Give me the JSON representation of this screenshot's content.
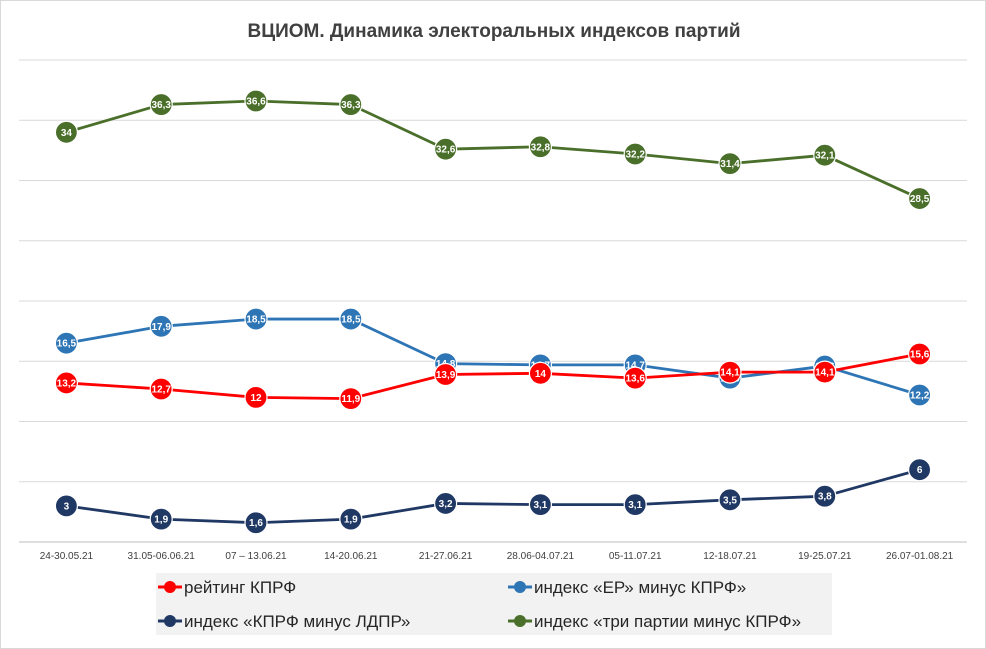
{
  "chart_data": {
    "type": "line",
    "title": "ВЦИОМ. Динамика электоральных индексов партий",
    "categories": [
      "24-30.05.21",
      "31.05-06.06.21",
      "07 – 13.06.21",
      "14-20.06.21",
      "21-27.06.21",
      "28.06-04.07.21",
      "05-11.07.21",
      "12-18.07.21",
      "19-25.07.21",
      "26.07-01.08.21"
    ],
    "ylim": [
      0,
      40
    ],
    "grid": true,
    "legend_position": "bottom",
    "series": [
      {
        "name": "рейтинг КПРФ",
        "color": "#ff0000",
        "values": [
          13.2,
          12.7,
          12,
          11.9,
          13.9,
          14,
          13.6,
          14.1,
          14.1,
          15.6
        ],
        "labels": [
          "13,2",
          "12,7",
          "12",
          "11,9",
          "13,9",
          "14",
          "13,6",
          "14,1",
          "14,1",
          "15,6"
        ]
      },
      {
        "name": "индекс «ЕР» минус КПРФ»",
        "color": "#2e75b6",
        "values": [
          16.5,
          17.9,
          18.5,
          18.5,
          14.8,
          14.7,
          14.7,
          13.6,
          14.6,
          12.2
        ],
        "labels": [
          "16,5",
          "17,9",
          "18,5",
          "18,5",
          "14,8",
          "14,7",
          "14,7",
          "13,6",
          "14,6",
          "12,2"
        ]
      },
      {
        "name": "индекс «КПРФ минус ЛДПР»",
        "color": "#203864",
        "values": [
          3,
          1.9,
          1.6,
          1.9,
          3.2,
          3.1,
          3.1,
          3.5,
          3.8,
          6
        ],
        "labels": [
          "3",
          "1,9",
          "1,6",
          "1,9",
          "3,2",
          "3,1",
          "3,1",
          "3,5",
          "3,8",
          "6"
        ]
      },
      {
        "name": "индекс «три партии минус КПРФ»",
        "color": "#4a6f2a",
        "values": [
          34,
          36.3,
          36.6,
          36.3,
          32.6,
          32.8,
          32.2,
          31.4,
          32.1,
          28.5
        ],
        "labels": [
          "34",
          "36,3",
          "36,6",
          "36,3",
          "32,6",
          "32,8",
          "32,2",
          "31,4",
          "32,1",
          "28,5"
        ]
      }
    ]
  }
}
